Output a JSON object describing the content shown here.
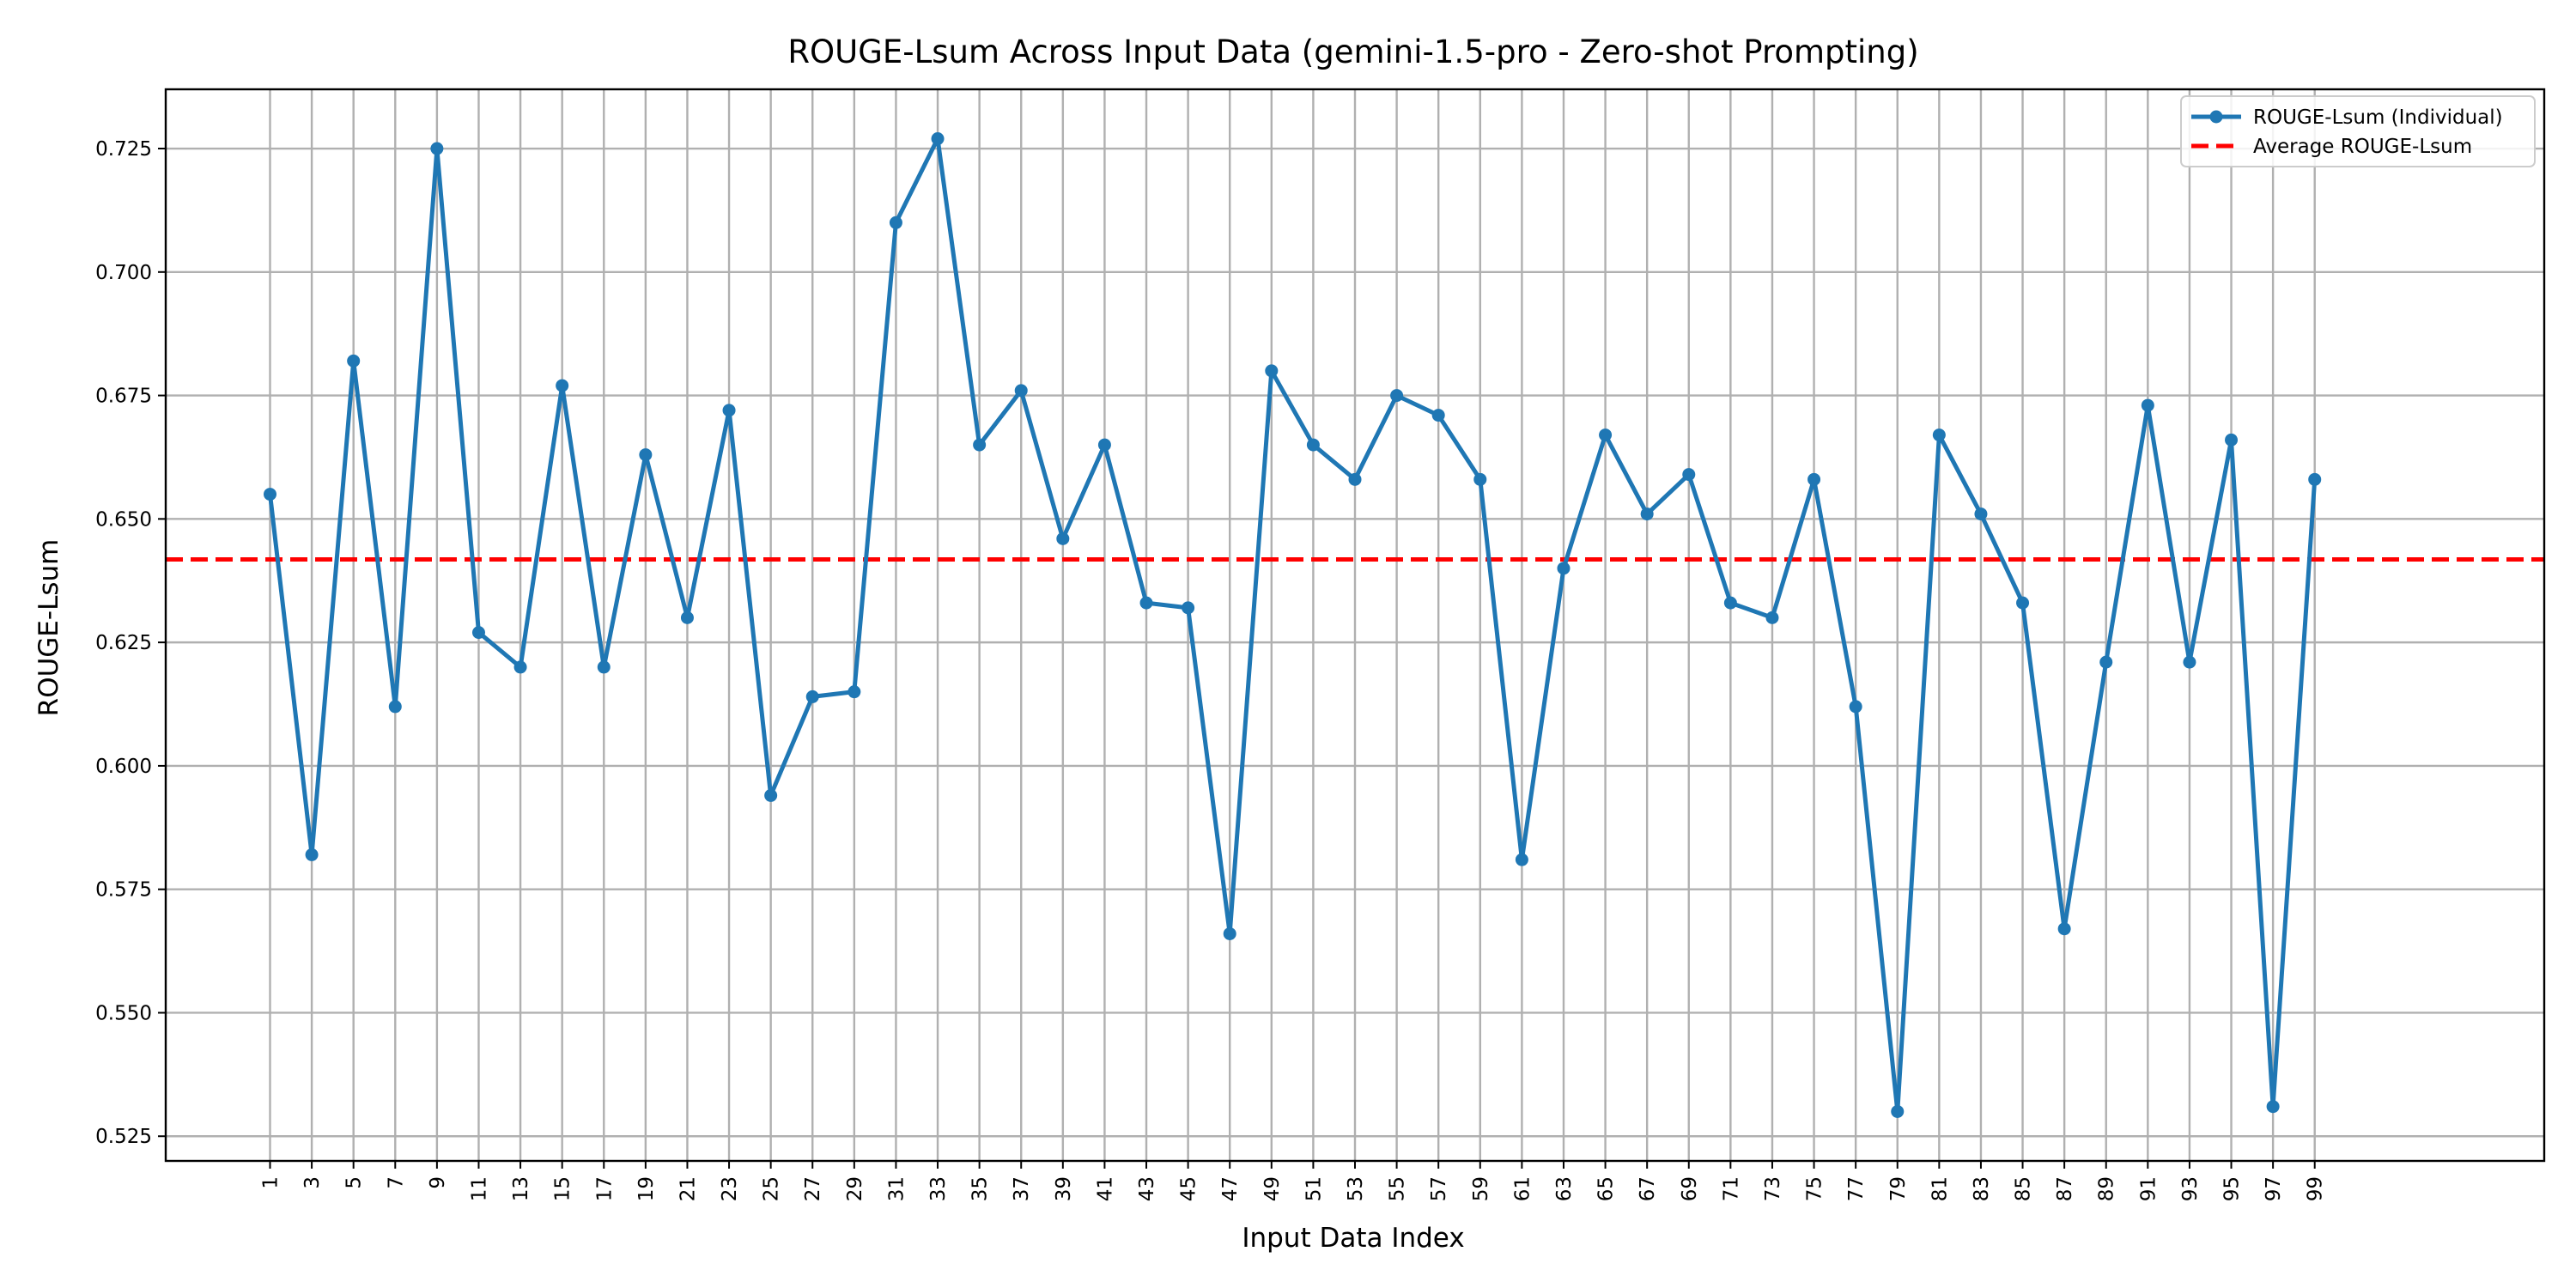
{
  "chart_data": {
    "type": "line",
    "title": "ROUGE-Lsum Across Input Data (gemini-1.5-pro - Zero-shot Prompting)",
    "xlabel": "Input Data Index",
    "ylabel": "ROUGE-Lsum",
    "xlim": [
      -4,
      110
    ],
    "ylim": [
      0.52,
      0.737
    ],
    "x_ticks": [
      1,
      3,
      5,
      7,
      9,
      11,
      13,
      15,
      17,
      19,
      21,
      23,
      25,
      27,
      29,
      31,
      33,
      35,
      37,
      39,
      41,
      43,
      45,
      47,
      49,
      51,
      53,
      55,
      57,
      59,
      61,
      63,
      65,
      67,
      69,
      71,
      73,
      75,
      77,
      79,
      81,
      83,
      85,
      87,
      89,
      91,
      93,
      95,
      97,
      99
    ],
    "y_ticks": [
      0.525,
      0.55,
      0.575,
      0.6,
      0.625,
      0.65,
      0.675,
      0.7,
      0.725
    ],
    "y_tick_labels": [
      "0.525",
      "0.550",
      "0.575",
      "0.600",
      "0.625",
      "0.650",
      "0.675",
      "0.700",
      "0.725"
    ],
    "grid": true,
    "legend_position": "top-right",
    "colors": {
      "series": "#1f77b4",
      "average": "#ff0000",
      "grid": "#b0b0b0"
    },
    "series": [
      {
        "name": "ROUGE-Lsum (Individual)",
        "x": [
          1,
          3,
          5,
          7,
          9,
          11,
          13,
          15,
          17,
          19,
          21,
          23,
          25,
          27,
          29,
          31,
          33,
          35,
          37,
          39,
          41,
          43,
          45,
          47,
          49,
          51,
          53,
          55,
          57,
          59,
          61,
          63,
          65,
          67,
          69,
          71,
          73,
          75,
          77,
          79,
          81,
          83,
          85,
          87,
          89,
          91,
          93,
          95,
          97,
          99
        ],
        "values": [
          0.655,
          0.582,
          0.682,
          0.612,
          0.725,
          0.627,
          0.62,
          0.677,
          0.62,
          0.663,
          0.63,
          0.672,
          0.594,
          0.614,
          0.615,
          0.71,
          0.727,
          0.665,
          0.676,
          0.646,
          0.665,
          0.633,
          0.632,
          0.566,
          0.68,
          0.665,
          0.658,
          0.675,
          0.671,
          0.658,
          0.581,
          0.64,
          0.667,
          0.651,
          0.659,
          0.633,
          0.63,
          0.658,
          0.612,
          0.53,
          0.667,
          0.651,
          0.633,
          0.567,
          0.621,
          0.673,
          0.621,
          0.666,
          0.531,
          0.658
        ]
      }
    ],
    "average": {
      "name": "Average ROUGE-Lsum",
      "value": 0.6418
    }
  }
}
